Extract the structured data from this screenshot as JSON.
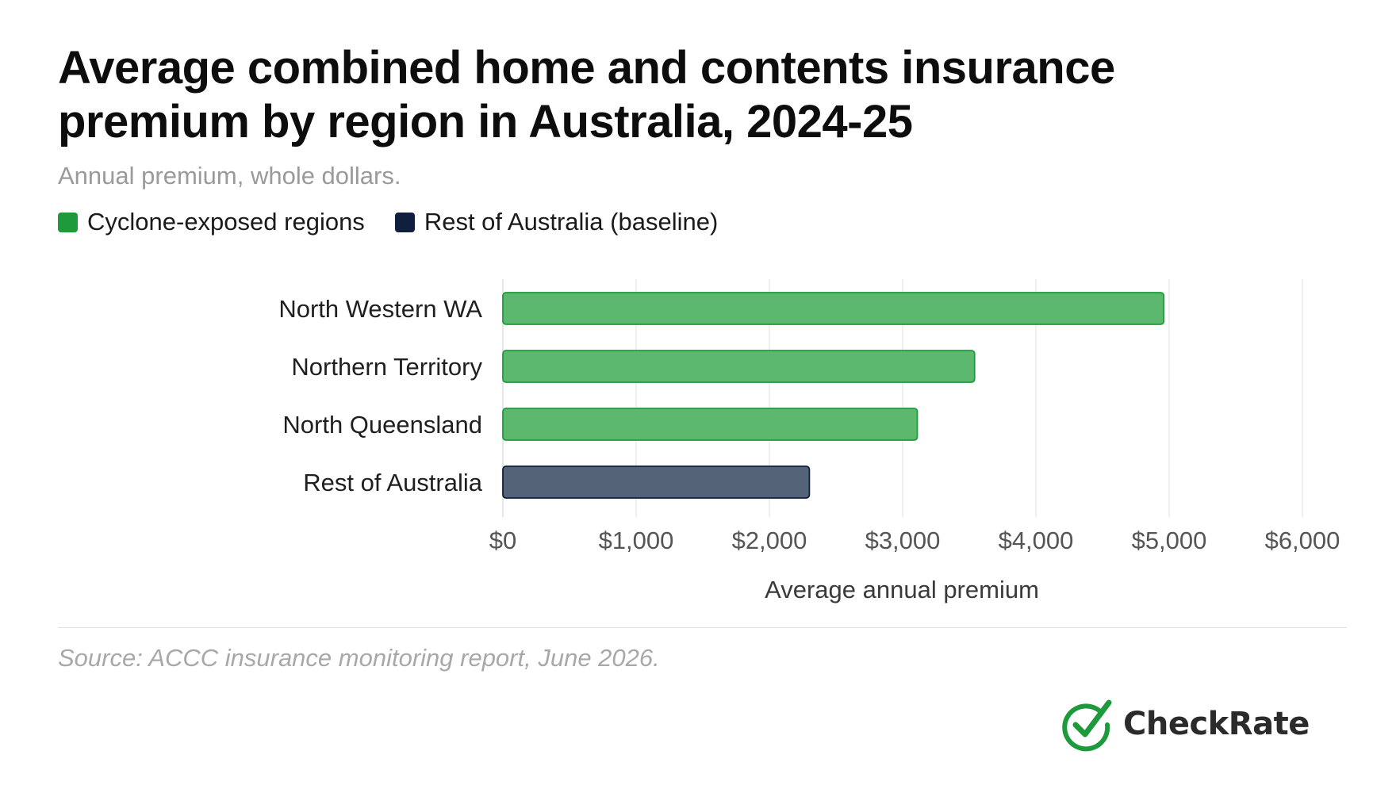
{
  "title_line1": "Average combined home and contents insurance",
  "title_line2": "premium by region in Australia, 2024-25",
  "subtitle": "Annual premium, whole dollars.",
  "legend": [
    {
      "label": "Cyclone-exposed regions",
      "color": "#1e9a3c"
    },
    {
      "label": "Rest of Australia (baseline)",
      "color": "#0f1f3d"
    }
  ],
  "colors": {
    "cyclone_fill": "#5cb86e",
    "cyclone_stroke": "#1e9a3c",
    "baseline_fill": "#556378",
    "baseline_stroke": "#0f1f3d",
    "grid": "#ececec"
  },
  "chart_data": {
    "type": "bar",
    "orientation": "horizontal",
    "categories": [
      "North Western WA",
      "Northern Territory",
      "North Queensland",
      "Rest of Australia"
    ],
    "values": [
      4960,
      3540,
      3110,
      2300
    ],
    "groups": [
      "cyclone",
      "cyclone",
      "cyclone",
      "baseline"
    ],
    "xlim": [
      0,
      6000
    ],
    "xticks": [
      0,
      1000,
      2000,
      3000,
      4000,
      5000,
      6000
    ],
    "xtick_labels": [
      "$0",
      "$1,000",
      "$2,000",
      "$3,000",
      "$4,000",
      "$5,000",
      "$6,000"
    ],
    "xlabel": "Average annual premium",
    "ylabel": "",
    "grid": "vertical",
    "legend_position": "top-left"
  },
  "source": "Source: ACCC insurance monitoring report, June 2026.",
  "brand": {
    "name": "CheckRate",
    "icon": "check-circle-icon"
  }
}
